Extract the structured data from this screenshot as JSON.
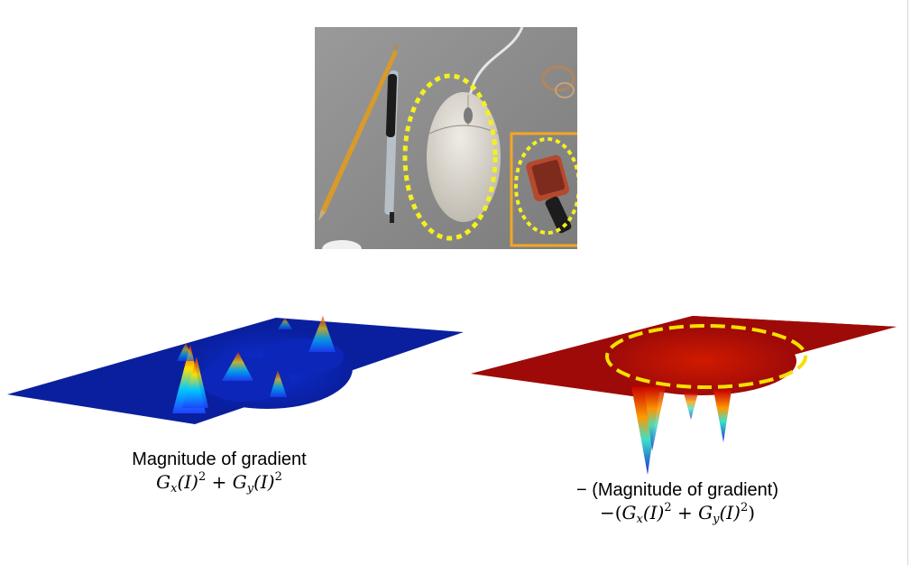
{
  "captions": {
    "left_title": "Magnitude of gradient",
    "right_title": "− (Magnitude of gradient)"
  },
  "formulas": {
    "left": {
      "term1": "G",
      "term1_sub": "x",
      "term1_arg": "(I)",
      "term1_pow": "2",
      "plus": "+",
      "term2": "G",
      "term2_sub": "y",
      "term2_arg": "(I)",
      "term2_pow": "2"
    },
    "right": {
      "prefix": "−(",
      "term1": "G",
      "term1_sub": "x",
      "term1_arg": "(I)",
      "term1_pow": "2",
      "plus": "+",
      "term2": "G",
      "term2_sub": "y",
      "term2_arg": "(I)",
      "term2_pow": "2",
      "suffix": ")"
    }
  },
  "colors": {
    "photo_background": "#8a8a8a",
    "selection_dots": "#f5f01e",
    "selection_box": "#f5a623",
    "left_surface": "#0a1f9e",
    "right_surface": "#9e0a08",
    "contour_dash": "#f5e000"
  },
  "figures": {
    "photo": "photo-of-pencil-pen-mouse-and-object",
    "left_plot": "surface-plot-gradient-magnitude",
    "right_plot": "surface-plot-negative-gradient-magnitude"
  }
}
